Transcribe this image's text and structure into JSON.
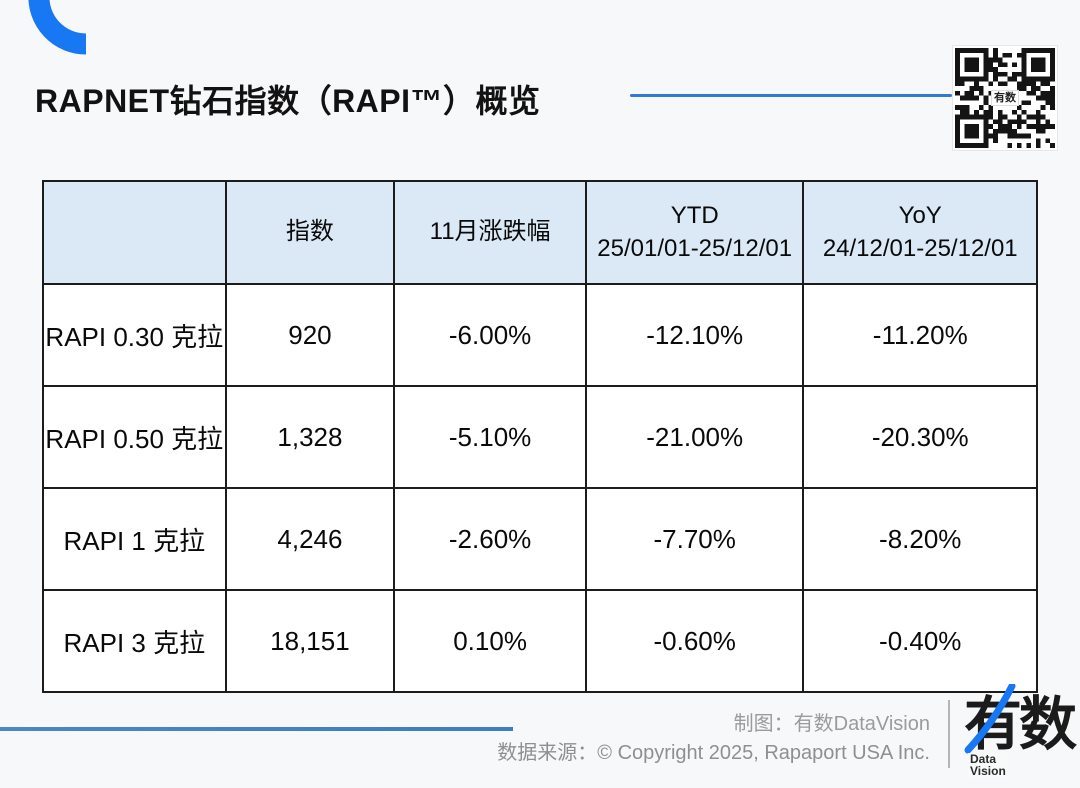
{
  "page": {
    "title": "RAPNET钻石指数（RAPI™）概览"
  },
  "qr": {
    "center_label": "有数"
  },
  "table": {
    "columns": [
      {
        "line1": "",
        "line2": ""
      },
      {
        "line1": "指数",
        "line2": ""
      },
      {
        "line1": "11月涨跌幅",
        "line2": ""
      },
      {
        "line1": "YTD",
        "line2": "25/01/01-25/12/01"
      },
      {
        "line1": "YoY",
        "line2": "24/12/01-25/12/01"
      }
    ],
    "rows": [
      {
        "label": "RAPI 0.30 克拉",
        "index": "920",
        "monthly": "-6.00%",
        "ytd": "-12.10%",
        "yoy": "-11.20%"
      },
      {
        "label": "RAPI 0.50 克拉",
        "index": "1,328",
        "monthly": "-5.10%",
        "ytd": "-21.00%",
        "yoy": "-20.30%"
      },
      {
        "label": "RAPI 1 克拉",
        "index": "4,246",
        "monthly": "-2.60%",
        "ytd": "-7.70%",
        "yoy": "-8.20%"
      },
      {
        "label": "RAPI 3 克拉",
        "index": "18,151",
        "monthly": "0.10%",
        "ytd": "-0.60%",
        "yoy": "-0.40%"
      }
    ]
  },
  "footer": {
    "credit": "制图：有数DataVision",
    "source": "数据来源：© Copyright 2025, Rapaport USA Inc.",
    "logo_chars": "有数",
    "logo_sub_line1": "Data",
    "logo_sub_line2": "Vision"
  },
  "colors": {
    "accent_blue": "#1877F2",
    "title_rule_blue": "#2e7bd6",
    "bottom_rule_blue": "#3c7dc4",
    "table_header_bg": "#dbe8f5"
  }
}
